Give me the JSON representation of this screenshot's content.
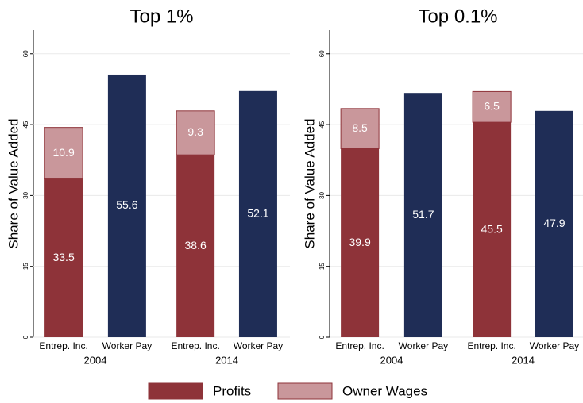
{
  "chart_data": [
    {
      "type": "bar",
      "stacked": true,
      "title": "Top 1%",
      "ylabel": "Share of Value Added",
      "categories": [
        "Entrep. Inc.",
        "Worker Pay",
        "Entrep. Inc.",
        "Worker Pay"
      ],
      "groups": [
        "2004",
        "2014"
      ],
      "series": [
        {
          "name": "Profits",
          "color": "#8e3339",
          "values": [
            33.5,
            null,
            38.6,
            null
          ]
        },
        {
          "name": "Owner Wages",
          "color": "#c9979b",
          "values": [
            10.9,
            null,
            9.3,
            null
          ]
        },
        {
          "color": "#1f2d56",
          "values": [
            null,
            55.6,
            null,
            52.1
          ]
        }
      ],
      "ylim": [
        0,
        65
      ],
      "yticks": [
        0,
        15,
        30,
        45,
        60
      ],
      "grid": true
    },
    {
      "type": "bar",
      "stacked": true,
      "title": "Top 0.1%",
      "ylabel": "Share of Value Added",
      "categories": [
        "Entrep. Inc.",
        "Worker Pay",
        "Entrep. Inc.",
        "Worker Pay"
      ],
      "groups": [
        "2004",
        "2014"
      ],
      "series": [
        {
          "color": "#8e3339",
          "values": [
            39.9,
            null,
            45.5,
            null
          ]
        },
        {
          "color": "#c9979b",
          "values": [
            8.5,
            null,
            6.5,
            null
          ]
        },
        {
          "color": "#1f2d56",
          "values": [
            null,
            51.7,
            null,
            47.9
          ]
        }
      ],
      "ylim": [
        0,
        65
      ],
      "yticks": [
        0,
        15,
        30,
        45,
        60
      ],
      "grid": true
    }
  ]
}
